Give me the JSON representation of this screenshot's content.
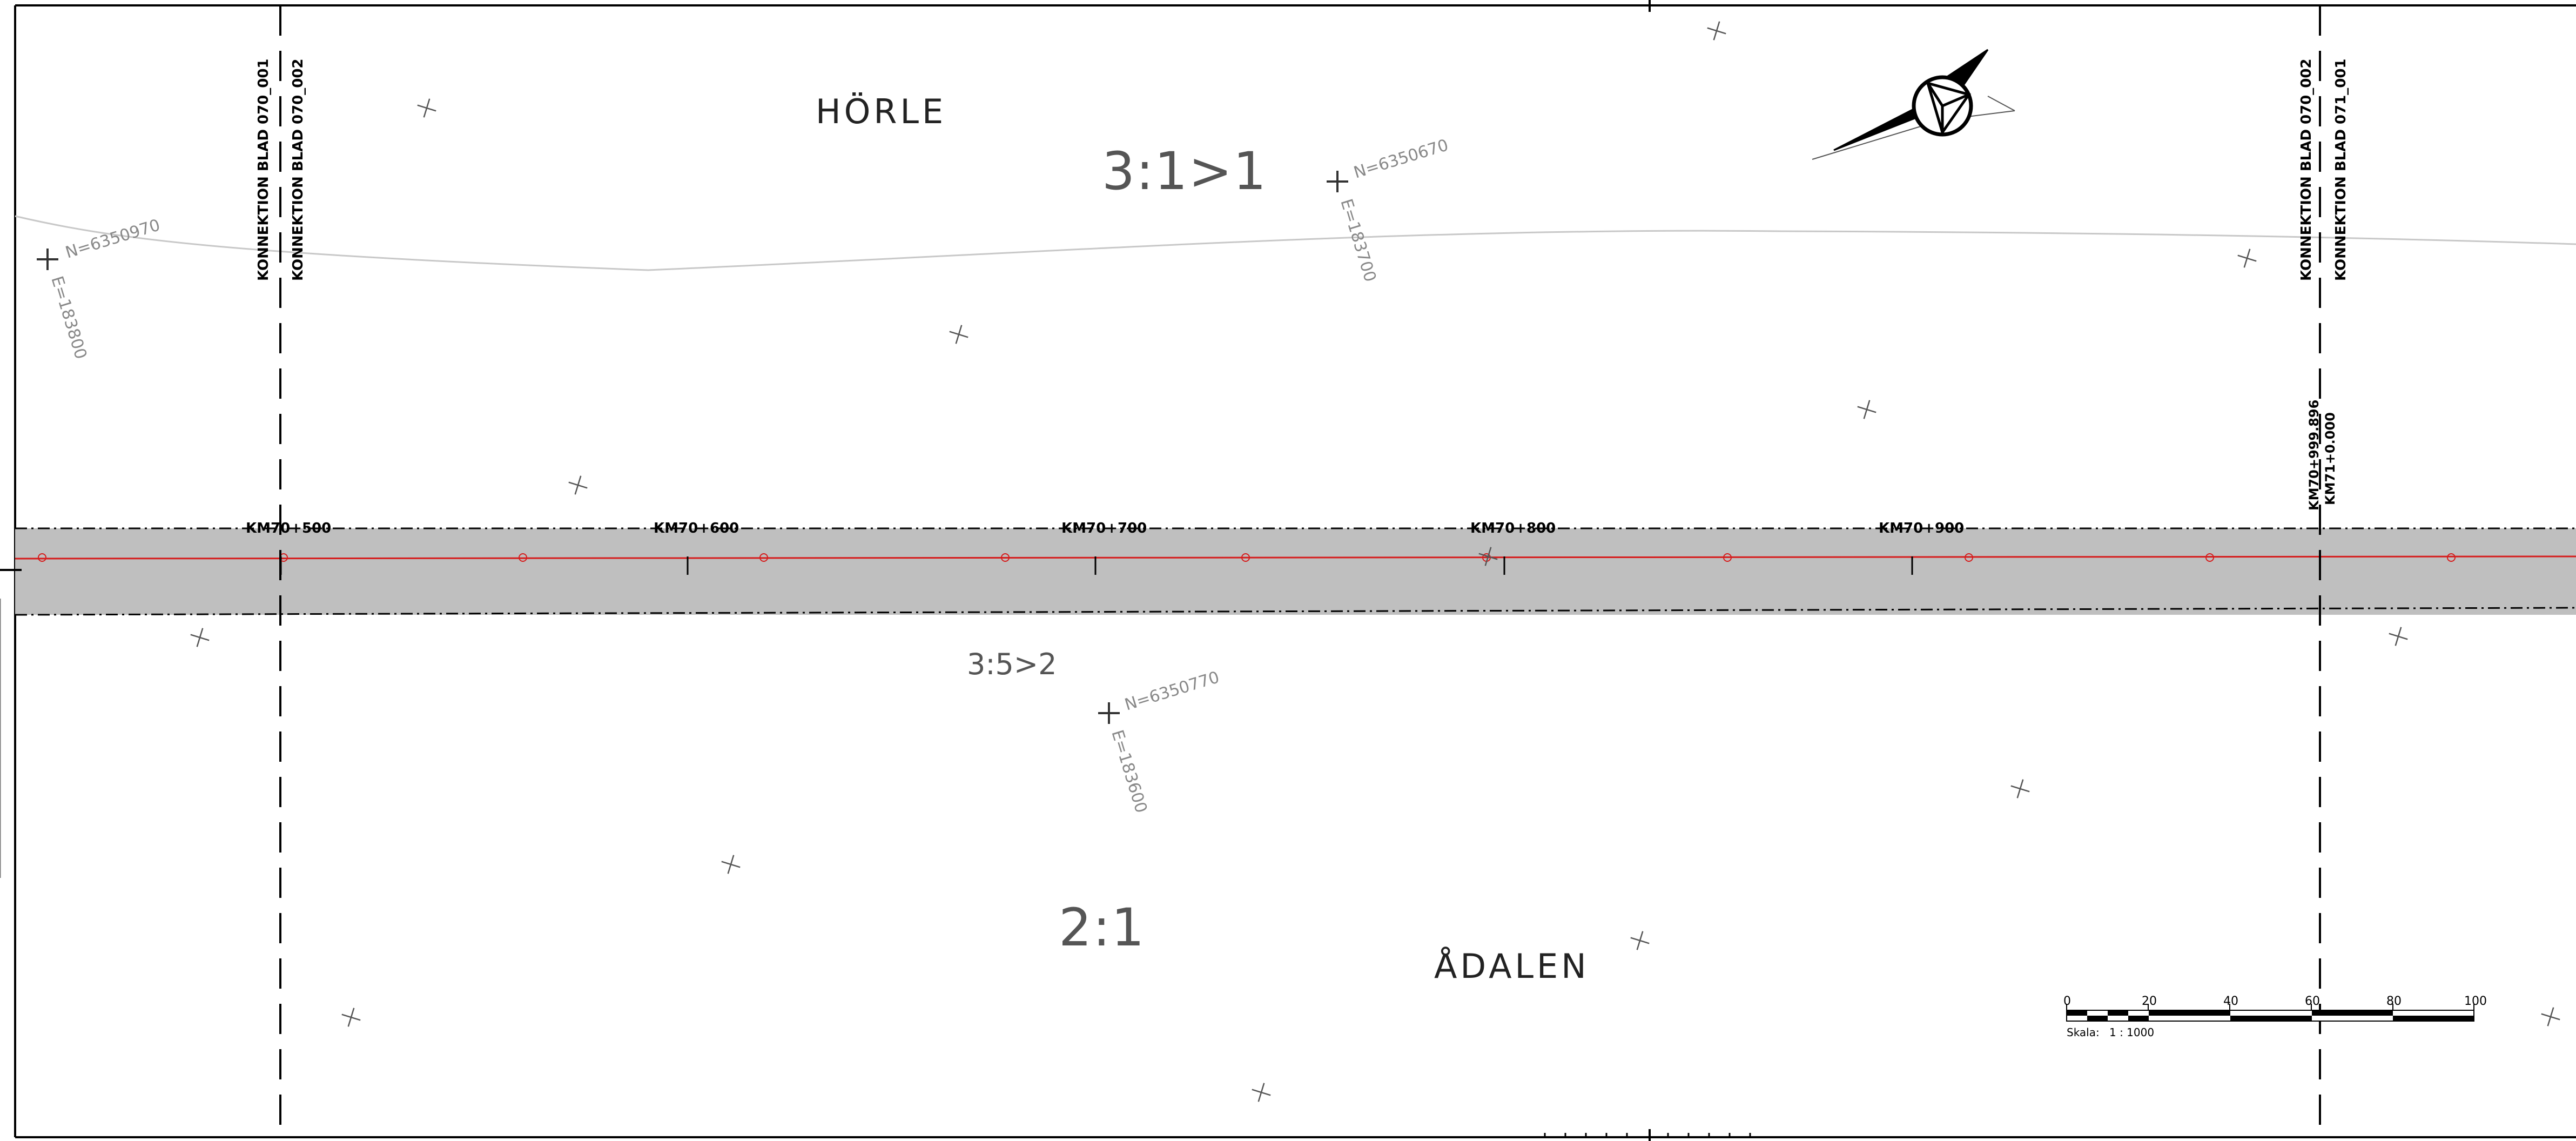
{
  "places": {
    "horle": "HÖRLE",
    "adalen": "ÅDALEN"
  },
  "slopes": {
    "north": "3:1>1",
    "south_upper": "3:5>2",
    "south_lower": "2:1"
  },
  "coordinates": {
    "west": {
      "north": "N=6350970",
      "east": "E=183800"
    },
    "middle": {
      "north": "N=6350670",
      "east": "E=183700"
    },
    "south": {
      "north": "N=6350770",
      "east": "E=183600"
    }
  },
  "sheet_connections": {
    "left": {
      "line1": "KONNEKTION BLAD 070_001",
      "line2": "KONNEKTION BLAD 070_002"
    },
    "right": {
      "line1": "KONNEKTION BLAD 070_002",
      "line2": "KONNEKTION BLAD 071_001"
    }
  },
  "chainage": {
    "labels": [
      "KM70+500",
      "KM70+600",
      "KM70+700",
      "KM70+800",
      "KM70+900"
    ],
    "end_label_1": "KM70+999.896",
    "end_label_2": "KM71+0.000"
  },
  "scale_bar": {
    "ticks": [
      "0",
      "20",
      "40",
      "60",
      "80",
      "100"
    ],
    "label": "Skala:",
    "value": "1 : 1000"
  },
  "north_arrow": "north-arrow-icon"
}
